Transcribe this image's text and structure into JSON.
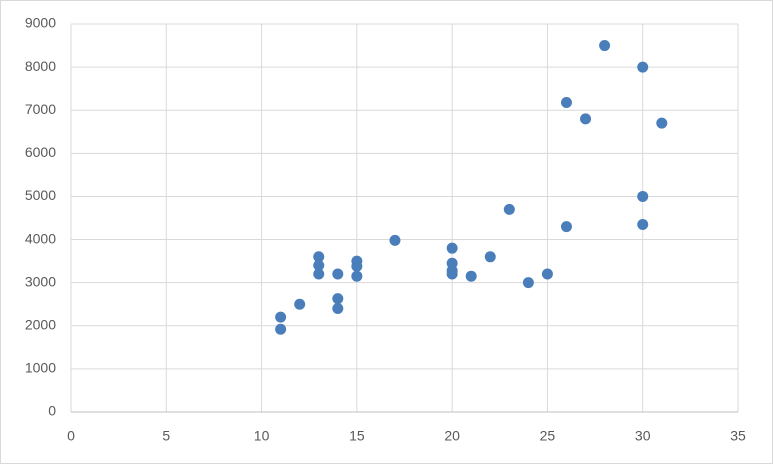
{
  "chart_data": {
    "type": "scatter",
    "x": [
      11,
      11,
      12,
      13,
      13,
      13,
      14,
      14,
      14,
      15,
      15,
      15,
      17,
      20,
      20,
      20,
      20,
      21,
      22,
      23,
      24,
      25,
      26,
      26,
      27,
      28,
      30,
      30,
      30,
      31
    ],
    "values": [
      2200,
      1920,
      2500,
      3600,
      3400,
      3200,
      3200,
      2630,
      2400,
      3500,
      3380,
      3150,
      3980,
      3800,
      3450,
      3280,
      3200,
      3150,
      3600,
      4700,
      3000,
      3200,
      7180,
      4300,
      6800,
      8500,
      8000,
      5000,
      4350,
      6700
    ],
    "color": "#4a7ebb",
    "xlim": [
      0,
      35
    ],
    "xticks": [
      0,
      5,
      10,
      15,
      20,
      25,
      30,
      35
    ],
    "ylim": [
      0,
      9000
    ],
    "yticks": [
      0,
      1000,
      2000,
      3000,
      4000,
      5000,
      6000,
      7000,
      8000,
      9000
    ],
    "grid": true
  }
}
